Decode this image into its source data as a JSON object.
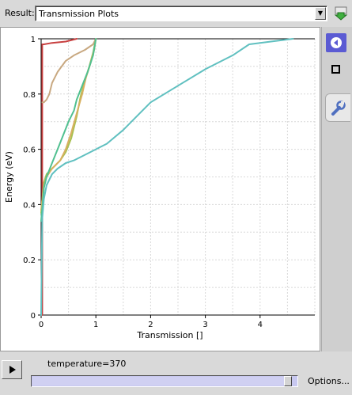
{
  "result": {
    "label": "Result:",
    "value": "Transmission Plots"
  },
  "side_panel": {
    "toggle_icon": "circle-arrow-left-icon",
    "square_icon": "square-icon",
    "settings_icon": "wrench-icon"
  },
  "controls": {
    "play_icon": "play-icon",
    "slider_label": "temperature=370",
    "slider_position": 0.98,
    "options_label": "Options..."
  },
  "chart_data": {
    "type": "line",
    "title": "",
    "xlabel": "Transmission []",
    "ylabel": "Energy (eV)",
    "xlim": [
      0,
      5
    ],
    "ylim": [
      0,
      1
    ],
    "xticks": [
      0,
      1,
      2,
      3,
      4
    ],
    "yticks": [
      0,
      0.2,
      0.4,
      0.6,
      0.8,
      1
    ],
    "grid": true,
    "series": [
      {
        "color": "#c84040",
        "x": [
          0.02,
          0.02,
          0.05,
          0.2,
          0.45,
          0.65
        ],
        "y": [
          0.0,
          0.98,
          0.98,
          0.985,
          0.99,
          1.0
        ]
      },
      {
        "color": "#c8a880",
        "x": [
          0.02,
          0.05,
          0.1,
          0.15,
          0.2,
          0.3,
          0.45,
          0.6,
          0.8,
          0.95,
          1.0
        ],
        "y": [
          0.77,
          0.77,
          0.78,
          0.8,
          0.84,
          0.88,
          0.92,
          0.94,
          0.96,
          0.98,
          1.0
        ]
      },
      {
        "color": "#a8c050",
        "x": [
          0.0,
          0.05,
          0.1,
          0.2,
          0.35,
          0.45,
          0.55,
          0.65,
          0.72,
          0.8,
          0.88,
          0.95,
          1.0
        ],
        "y": [
          0.37,
          0.48,
          0.51,
          0.53,
          0.56,
          0.59,
          0.64,
          0.72,
          0.79,
          0.85,
          0.9,
          0.95,
          1.0
        ]
      },
      {
        "color": "#d8b060",
        "x": [
          0.0,
          0.05,
          0.1,
          0.2,
          0.35,
          0.45,
          0.55,
          0.65,
          0.75,
          0.82,
          0.9,
          0.97,
          1.0
        ],
        "y": [
          0.38,
          0.47,
          0.5,
          0.53,
          0.56,
          0.6,
          0.66,
          0.73,
          0.8,
          0.86,
          0.91,
          0.96,
          1.0
        ]
      },
      {
        "color": "#50c090",
        "x": [
          0.0,
          0.05,
          0.1,
          0.2,
          0.3,
          0.4,
          0.5,
          0.6,
          0.65,
          0.75,
          0.85,
          0.95,
          1.0
        ],
        "y": [
          0.34,
          0.46,
          0.5,
          0.55,
          0.6,
          0.65,
          0.7,
          0.74,
          0.78,
          0.83,
          0.88,
          0.94,
          1.0
        ]
      },
      {
        "color": "#60c0c0",
        "x": [
          0.0,
          0.02,
          0.05,
          0.1,
          0.2,
          0.3,
          0.45,
          0.6,
          0.8,
          1.0,
          1.2,
          1.5,
          1.8,
          2.0,
          2.5,
          3.0,
          3.5,
          3.8,
          4.2,
          4.6
        ],
        "y": [
          0.0,
          0.35,
          0.42,
          0.47,
          0.51,
          0.53,
          0.55,
          0.56,
          0.58,
          0.6,
          0.62,
          0.67,
          0.73,
          0.77,
          0.83,
          0.89,
          0.94,
          0.98,
          0.99,
          1.0
        ]
      }
    ]
  }
}
